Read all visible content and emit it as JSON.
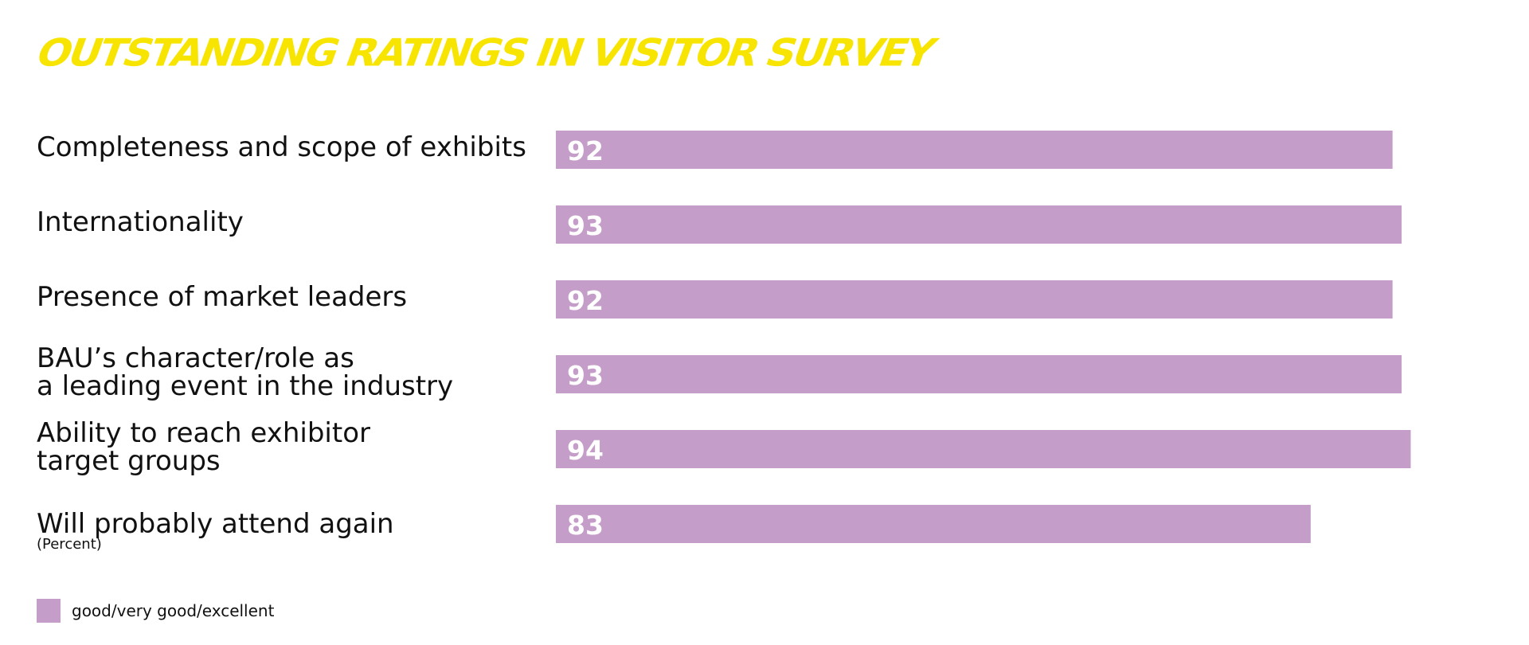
{
  "colors": {
    "title": "#f7e400",
    "bar": "#c59dc9",
    "bar_text": "#ffffff",
    "text": "#111111"
  },
  "chart_data": {
    "type": "bar",
    "orientation": "horizontal",
    "title": "OUTSTANDING RATINGS IN VISITOR SURVEY",
    "categories": [
      [
        "Completeness and scope of exhibits"
      ],
      [
        "Internationality"
      ],
      [
        "Presence of market leaders"
      ],
      [
        "BAU’s character/role as",
        "a leading event in the industry"
      ],
      [
        "Ability to reach exhibitor",
        "target groups"
      ],
      [
        "Will probably attend again"
      ]
    ],
    "series": [
      {
        "name": "good/very good/excellent",
        "values": [
          92,
          93,
          92,
          93,
          94,
          83
        ]
      }
    ],
    "unit_label": "(Percent)",
    "xlim": [
      0,
      100
    ],
    "grid": false,
    "legend_position": "bottom-left",
    "data_labels": "inside-start"
  }
}
